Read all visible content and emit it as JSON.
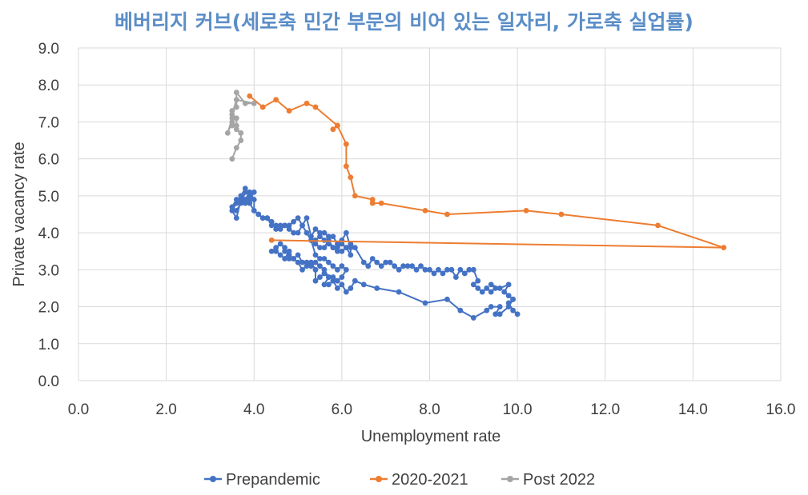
{
  "chart_data": {
    "type": "scatter",
    "title": "베버리지 커브(세로축 민간 부문의 비어 있는 일자리, 가로축 실업률)",
    "xlabel": "Unemployment rate",
    "ylabel": "Private vacancy rate",
    "xlim": [
      0,
      16
    ],
    "ylim": [
      0,
      9
    ],
    "x_ticks": [
      "0.0",
      "2.0",
      "4.0",
      "6.0",
      "8.0",
      "10.0",
      "12.0",
      "14.0",
      "16.0"
    ],
    "y_ticks": [
      "0.0",
      "1.0",
      "2.0",
      "3.0",
      "4.0",
      "5.0",
      "6.0",
      "7.0",
      "8.0",
      "9.0"
    ],
    "grid": true,
    "legend_position": "bottom",
    "lines_connected": true,
    "series": [
      {
        "name": "Prepandemic",
        "color": "#4472c4",
        "points": [
          [
            10.0,
            1.8
          ],
          [
            9.9,
            1.9
          ],
          [
            9.8,
            2.1
          ],
          [
            9.9,
            2.2
          ],
          [
            9.8,
            2.0
          ],
          [
            9.6,
            1.8
          ],
          [
            9.5,
            1.8
          ],
          [
            9.6,
            2.0
          ],
          [
            9.4,
            2.0
          ],
          [
            9.3,
            1.9
          ],
          [
            9.0,
            1.7
          ],
          [
            8.7,
            1.9
          ],
          [
            8.4,
            2.2
          ],
          [
            7.9,
            2.1
          ],
          [
            7.3,
            2.4
          ],
          [
            6.8,
            2.5
          ],
          [
            6.5,
            2.6
          ],
          [
            6.3,
            2.7
          ],
          [
            6.2,
            2.5
          ],
          [
            6.1,
            2.4
          ],
          [
            6.0,
            2.6
          ],
          [
            5.9,
            2.5
          ],
          [
            5.8,
            2.7
          ],
          [
            5.7,
            2.6
          ],
          [
            5.6,
            2.6
          ],
          [
            5.7,
            2.8
          ],
          [
            5.6,
            2.9
          ],
          [
            5.5,
            2.8
          ],
          [
            5.4,
            2.7
          ],
          [
            5.4,
            3.0
          ],
          [
            5.3,
            3.2
          ],
          [
            5.2,
            3.1
          ],
          [
            5.1,
            3.0
          ],
          [
            5.0,
            3.2
          ],
          [
            4.9,
            3.3
          ],
          [
            4.8,
            3.3
          ],
          [
            4.8,
            3.5
          ],
          [
            4.7,
            3.3
          ],
          [
            4.6,
            3.4
          ],
          [
            4.5,
            3.5
          ],
          [
            4.4,
            3.5
          ],
          [
            4.5,
            3.6
          ],
          [
            4.6,
            3.7
          ],
          [
            4.7,
            3.6
          ],
          [
            4.7,
            3.5
          ],
          [
            4.8,
            3.4
          ],
          [
            4.9,
            3.3
          ],
          [
            5.0,
            3.4
          ],
          [
            5.1,
            3.2
          ],
          [
            5.2,
            3.2
          ],
          [
            5.3,
            3.1
          ],
          [
            5.4,
            3.2
          ],
          [
            5.5,
            3.1
          ],
          [
            5.6,
            3.0
          ],
          [
            5.7,
            2.8
          ],
          [
            5.8,
            2.8
          ],
          [
            5.9,
            2.7
          ],
          [
            6.0,
            2.8
          ],
          [
            6.1,
            3.0
          ],
          [
            6.0,
            3.1
          ],
          [
            5.9,
            3.0
          ],
          [
            5.8,
            3.1
          ],
          [
            5.7,
            3.2
          ],
          [
            5.6,
            3.3
          ],
          [
            5.5,
            3.3
          ],
          [
            5.4,
            3.4
          ],
          [
            5.3,
            3.8
          ],
          [
            5.4,
            3.7
          ],
          [
            5.5,
            3.6
          ],
          [
            5.6,
            3.6
          ],
          [
            5.7,
            3.8
          ],
          [
            5.8,
            3.6
          ],
          [
            5.9,
            3.6
          ],
          [
            6.0,
            3.7
          ],
          [
            6.1,
            3.6
          ],
          [
            6.2,
            3.4
          ],
          [
            6.2,
            3.6
          ],
          [
            6.1,
            4.0
          ],
          [
            6.0,
            3.8
          ],
          [
            5.9,
            3.7
          ],
          [
            5.8,
            3.9
          ],
          [
            5.7,
            3.9
          ],
          [
            5.6,
            4.0
          ],
          [
            5.5,
            4.0
          ],
          [
            5.4,
            4.1
          ],
          [
            5.3,
            3.9
          ],
          [
            5.2,
            4.4
          ],
          [
            5.1,
            4.2
          ],
          [
            5.0,
            4.4
          ],
          [
            4.9,
            4.3
          ],
          [
            4.8,
            4.2
          ],
          [
            4.7,
            4.2
          ],
          [
            4.6,
            4.1
          ],
          [
            4.5,
            4.1
          ],
          [
            4.4,
            4.3
          ],
          [
            4.3,
            4.4
          ],
          [
            4.2,
            4.4
          ],
          [
            4.1,
            4.5
          ],
          [
            4.0,
            4.6
          ],
          [
            3.9,
            4.8
          ],
          [
            3.8,
            4.8
          ],
          [
            3.7,
            4.9
          ],
          [
            3.6,
            4.9
          ],
          [
            3.5,
            4.7
          ],
          [
            3.6,
            4.6
          ],
          [
            3.7,
            4.8
          ],
          [
            3.8,
            5.1
          ],
          [
            3.9,
            5.0
          ],
          [
            4.0,
            5.1
          ],
          [
            3.9,
            4.9
          ],
          [
            3.8,
            5.2
          ],
          [
            3.7,
            5.0
          ],
          [
            3.6,
            4.8
          ],
          [
            3.5,
            4.6
          ],
          [
            3.6,
            4.4
          ],
          [
            3.7,
            4.9
          ],
          [
            3.8,
            4.9
          ],
          [
            3.9,
            5.1
          ],
          [
            4.0,
            4.9
          ],
          [
            4.0,
            4.6
          ],
          [
            4.1,
            4.5
          ],
          [
            4.2,
            4.4
          ],
          [
            4.3,
            4.4
          ],
          [
            4.4,
            4.2
          ],
          [
            4.5,
            4.2
          ],
          [
            4.6,
            4.2
          ],
          [
            4.7,
            4.2
          ],
          [
            4.8,
            4.1
          ],
          [
            4.9,
            4.0
          ],
          [
            5.0,
            4.0
          ],
          [
            5.1,
            4.2
          ],
          [
            5.2,
            4.0
          ],
          [
            5.3,
            3.8
          ],
          [
            5.4,
            3.8
          ],
          [
            5.5,
            3.9
          ],
          [
            5.6,
            3.8
          ],
          [
            5.7,
            3.7
          ],
          [
            5.8,
            3.6
          ],
          [
            5.9,
            3.5
          ],
          [
            6.0,
            3.5
          ],
          [
            6.1,
            3.6
          ],
          [
            6.2,
            3.7
          ],
          [
            6.3,
            3.6
          ],
          [
            6.5,
            3.2
          ],
          [
            6.6,
            3.1
          ],
          [
            6.7,
            3.3
          ],
          [
            6.8,
            3.2
          ],
          [
            6.9,
            3.1
          ],
          [
            7.0,
            3.2
          ],
          [
            7.1,
            3.2
          ],
          [
            7.2,
            3.1
          ],
          [
            7.3,
            3.0
          ],
          [
            7.4,
            3.1
          ],
          [
            7.5,
            3.1
          ],
          [
            7.6,
            3.1
          ],
          [
            7.7,
            3.0
          ],
          [
            7.8,
            3.1
          ],
          [
            7.9,
            3.0
          ],
          [
            8.0,
            3.0
          ],
          [
            8.1,
            2.9
          ],
          [
            8.2,
            3.0
          ],
          [
            8.3,
            2.9
          ],
          [
            8.4,
            3.0
          ],
          [
            8.5,
            3.0
          ],
          [
            8.6,
            2.8
          ],
          [
            8.7,
            3.0
          ],
          [
            8.8,
            2.9
          ],
          [
            8.9,
            3.0
          ],
          [
            9.0,
            3.0
          ],
          [
            9.1,
            2.7
          ],
          [
            9.0,
            2.6
          ],
          [
            9.1,
            2.5
          ],
          [
            9.2,
            2.4
          ],
          [
            9.3,
            2.5
          ],
          [
            9.4,
            2.4
          ],
          [
            9.5,
            2.5
          ],
          [
            9.4,
            2.6
          ],
          [
            9.6,
            2.5
          ],
          [
            9.8,
            2.6
          ],
          [
            9.7,
            2.4
          ],
          [
            9.8,
            2.3
          ],
          [
            9.9,
            2.2
          ]
        ]
      },
      {
        "name": "2020-2021",
        "color": "#ed7d31",
        "points": [
          [
            4.4,
            3.8
          ],
          [
            14.7,
            3.6
          ],
          [
            13.2,
            4.2
          ],
          [
            11.0,
            4.5
          ],
          [
            10.2,
            4.6
          ],
          [
            8.4,
            4.5
          ],
          [
            7.9,
            4.6
          ],
          [
            6.9,
            4.8
          ],
          [
            6.7,
            4.8
          ],
          [
            6.7,
            4.9
          ],
          [
            6.3,
            5.0
          ],
          [
            6.2,
            5.5
          ],
          [
            6.1,
            5.8
          ],
          [
            6.1,
            6.4
          ],
          [
            5.9,
            6.9
          ],
          [
            5.8,
            6.8
          ],
          [
            5.9,
            6.9
          ],
          [
            5.4,
            7.4
          ],
          [
            5.2,
            7.5
          ],
          [
            4.8,
            7.3
          ],
          [
            4.5,
            7.6
          ],
          [
            4.2,
            7.4
          ],
          [
            3.9,
            7.7
          ]
        ]
      },
      {
        "name": "Post 2022",
        "color": "#a5a5a5",
        "points": [
          [
            3.5,
            6.0
          ],
          [
            3.6,
            6.3
          ],
          [
            3.7,
            6.5
          ],
          [
            3.7,
            6.7
          ],
          [
            3.6,
            6.8
          ],
          [
            3.5,
            7.0
          ],
          [
            3.4,
            6.7
          ],
          [
            3.5,
            7.1
          ],
          [
            3.5,
            7.3
          ],
          [
            3.6,
            7.4
          ],
          [
            3.6,
            7.8
          ],
          [
            3.8,
            7.5
          ],
          [
            4.0,
            7.5
          ],
          [
            3.6,
            7.6
          ],
          [
            3.5,
            7.2
          ],
          [
            3.6,
            7.1
          ],
          [
            3.6,
            6.9
          ],
          [
            3.5,
            6.9
          ]
        ]
      }
    ]
  }
}
